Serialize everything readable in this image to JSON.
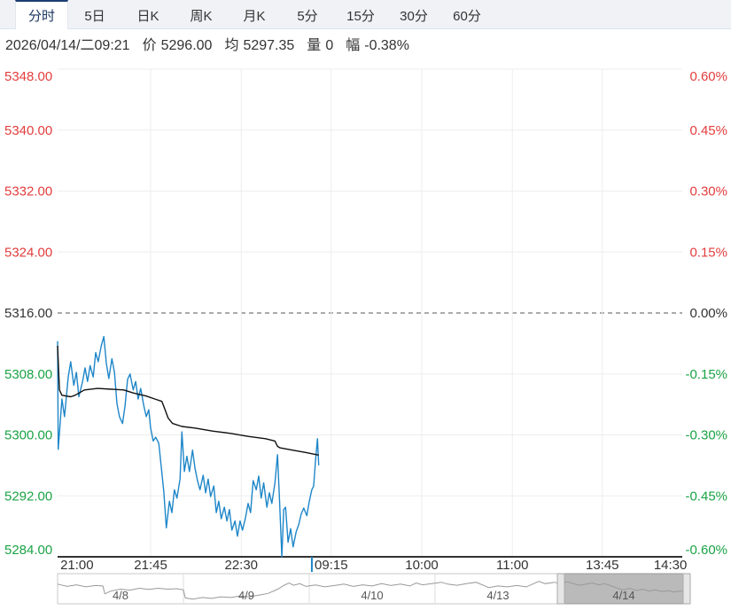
{
  "tabs": {
    "items": [
      {
        "id": "fenshi",
        "label": "分时",
        "active": true
      },
      {
        "id": "5ri",
        "label": "5日",
        "active": false
      },
      {
        "id": "rik",
        "label": "日K",
        "active": false
      },
      {
        "id": "zhouk",
        "label": "周K",
        "active": false
      },
      {
        "id": "yuek",
        "label": "月K",
        "active": false
      },
      {
        "id": "5fen",
        "label": "5分",
        "active": false
      },
      {
        "id": "15fen",
        "label": "15分",
        "active": false
      },
      {
        "id": "30fen",
        "label": "30分",
        "active": false
      },
      {
        "id": "60fen",
        "label": "60分",
        "active": false
      }
    ]
  },
  "info": {
    "datetime": "2026/04/14/二09:21",
    "fields": [
      {
        "id": "price",
        "label": "价",
        "value": "5296.00"
      },
      {
        "id": "average",
        "label": "均",
        "value": "5297.35"
      },
      {
        "id": "volume",
        "label": "量",
        "value": "0"
      },
      {
        "id": "change",
        "label": "幅",
        "value": "-0.38%"
      }
    ]
  },
  "colors": {
    "up_red": "#e23d3d",
    "down_green": "#1ba345",
    "price_blue": "#1e86c8",
    "avg_black": "#111111",
    "grid": "#ededed",
    "zero_dash": "#555555",
    "axis_line": "#333333",
    "text_dark": "#333333",
    "nav_line": "#999999",
    "nav_border": "#c8c8c8",
    "nav_divider": "#dddddd",
    "nav_window": "#a9a9a9",
    "nav_handle": "#e6e6e6"
  },
  "chart_data": {
    "type": "line",
    "title": "",
    "ylim": [
      5284,
      5348
    ],
    "baseline_price": 5316,
    "grid": true,
    "y_axis_left": {
      "ticks": [
        "5348.00",
        "5340.00",
        "5332.00",
        "5324.00",
        "5316.00",
        "5308.00",
        "5300.00",
        "5292.00",
        "5284.00"
      ],
      "colors": [
        "red",
        "red",
        "red",
        "red",
        "black",
        "green",
        "green",
        "green",
        "green"
      ]
    },
    "y_axis_right": {
      "ticks": [
        "0.60%",
        "0.45%",
        "0.30%",
        "0.15%",
        "0.00%",
        "-0.15%",
        "-0.30%",
        "-0.45%",
        "-0.60%"
      ],
      "colors": [
        "red",
        "red",
        "red",
        "red",
        "black",
        "green",
        "green",
        "green",
        "green"
      ]
    },
    "x_ticks": [
      {
        "label": "21:00",
        "t": 0.031,
        "grid": false
      },
      {
        "label": "21:45",
        "t": 0.149,
        "grid": true
      },
      {
        "label": "22:30",
        "t": 0.294,
        "grid": true
      },
      {
        "label": "09:15",
        "t": 0.438,
        "grid": true
      },
      {
        "label": "10:00",
        "t": 0.583,
        "grid": true
      },
      {
        "label": "11:00",
        "t": 0.728,
        "grid": true
      },
      {
        "label": "13:45",
        "t": 0.872,
        "grid": true
      },
      {
        "label": "14:30",
        "t": 0.981,
        "grid": false
      }
    ],
    "current_time_t": 0.407,
    "series": [
      {
        "name": "price",
        "color": "price_blue",
        "points": [
          [
            0.0,
            5312.3
          ],
          [
            0.001,
            5298.1
          ],
          [
            0.007,
            5304.7
          ],
          [
            0.011,
            5302.4
          ],
          [
            0.017,
            5307.6
          ],
          [
            0.021,
            5309.6
          ],
          [
            0.026,
            5306.5
          ],
          [
            0.03,
            5308.2
          ],
          [
            0.034,
            5305.0
          ],
          [
            0.04,
            5307.0
          ],
          [
            0.044,
            5308.8
          ],
          [
            0.048,
            5307.0
          ],
          [
            0.052,
            5309.1
          ],
          [
            0.057,
            5307.6
          ],
          [
            0.061,
            5310.8
          ],
          [
            0.065,
            5309.6
          ],
          [
            0.07,
            5311.7
          ],
          [
            0.074,
            5312.9
          ],
          [
            0.078,
            5309.4
          ],
          [
            0.082,
            5307.4
          ],
          [
            0.087,
            5310.0
          ],
          [
            0.091,
            5308.2
          ],
          [
            0.095,
            5304.1
          ],
          [
            0.099,
            5302.4
          ],
          [
            0.104,
            5301.5
          ],
          [
            0.108,
            5303.8
          ],
          [
            0.112,
            5307.3
          ],
          [
            0.116,
            5308.0
          ],
          [
            0.121,
            5305.9
          ],
          [
            0.125,
            5307.0
          ],
          [
            0.129,
            5304.7
          ],
          [
            0.133,
            5306.1
          ],
          [
            0.138,
            5303.8
          ],
          [
            0.142,
            5302.4
          ],
          [
            0.146,
            5303.3
          ],
          [
            0.149,
            5300.9
          ],
          [
            0.153,
            5299.2
          ],
          [
            0.157,
            5299.7
          ],
          [
            0.162,
            5298.9
          ],
          [
            0.166,
            5295.8
          ],
          [
            0.17,
            5292.5
          ],
          [
            0.174,
            5287.8
          ],
          [
            0.179,
            5291.3
          ],
          [
            0.183,
            5289.8
          ],
          [
            0.187,
            5292.8
          ],
          [
            0.191,
            5291.7
          ],
          [
            0.196,
            5294.2
          ],
          [
            0.199,
            5300.4
          ],
          [
            0.203,
            5295.2
          ],
          [
            0.207,
            5297.2
          ],
          [
            0.211,
            5295.2
          ],
          [
            0.216,
            5298.0
          ],
          [
            0.22,
            5295.6
          ],
          [
            0.224,
            5294.0
          ],
          [
            0.228,
            5292.8
          ],
          [
            0.233,
            5294.7
          ],
          [
            0.237,
            5292.4
          ],
          [
            0.241,
            5294.2
          ],
          [
            0.245,
            5291.9
          ],
          [
            0.25,
            5293.3
          ],
          [
            0.254,
            5289.8
          ],
          [
            0.258,
            5291.3
          ],
          [
            0.262,
            5289.0
          ],
          [
            0.267,
            5290.5
          ],
          [
            0.271,
            5288.7
          ],
          [
            0.275,
            5290.2
          ],
          [
            0.279,
            5287.5
          ],
          [
            0.284,
            5288.7
          ],
          [
            0.288,
            5286.7
          ],
          [
            0.292,
            5288.7
          ],
          [
            0.296,
            5287.5
          ],
          [
            0.301,
            5289.2
          ],
          [
            0.305,
            5291.0
          ],
          [
            0.309,
            5289.8
          ],
          [
            0.313,
            5294.0
          ],
          [
            0.318,
            5292.8
          ],
          [
            0.322,
            5294.6
          ],
          [
            0.326,
            5291.7
          ],
          [
            0.33,
            5293.7
          ],
          [
            0.335,
            5290.5
          ],
          [
            0.339,
            5292.4
          ],
          [
            0.343,
            5291.0
          ],
          [
            0.348,
            5293.7
          ],
          [
            0.352,
            5297.4
          ],
          [
            0.355,
            5291.9
          ],
          [
            0.359,
            5284.0
          ],
          [
            0.362,
            5290.2
          ],
          [
            0.365,
            5290.5
          ],
          [
            0.369,
            5285.9
          ],
          [
            0.373,
            5287.7
          ],
          [
            0.377,
            5285.3
          ],
          [
            0.382,
            5287.3
          ],
          [
            0.386,
            5288.2
          ],
          [
            0.39,
            5289.6
          ],
          [
            0.394,
            5290.4
          ],
          [
            0.399,
            5289.4
          ],
          [
            0.403,
            5291.3
          ],
          [
            0.407,
            5292.8
          ],
          [
            0.41,
            5293.3
          ],
          [
            0.413,
            5296.8
          ],
          [
            0.416,
            5299.5
          ],
          [
            0.418,
            5296.0
          ]
        ]
      },
      {
        "name": "average",
        "color": "avg_black",
        "points": [
          [
            0.0,
            5311.7
          ],
          [
            0.003,
            5305.9
          ],
          [
            0.007,
            5305.2
          ],
          [
            0.021,
            5305.0
          ],
          [
            0.028,
            5305.2
          ],
          [
            0.043,
            5305.9
          ],
          [
            0.064,
            5306.1
          ],
          [
            0.106,
            5305.9
          ],
          [
            0.121,
            5305.5
          ],
          [
            0.142,
            5305.1
          ],
          [
            0.156,
            5304.7
          ],
          [
            0.167,
            5304.4
          ],
          [
            0.172,
            5303.3
          ],
          [
            0.177,
            5302.2
          ],
          [
            0.184,
            5301.5
          ],
          [
            0.199,
            5301.1
          ],
          [
            0.22,
            5300.9
          ],
          [
            0.248,
            5300.5
          ],
          [
            0.277,
            5300.2
          ],
          [
            0.305,
            5299.8
          ],
          [
            0.333,
            5299.5
          ],
          [
            0.348,
            5299.2
          ],
          [
            0.352,
            5298.5
          ],
          [
            0.356,
            5298.3
          ],
          [
            0.376,
            5298.0
          ],
          [
            0.397,
            5297.7
          ],
          [
            0.418,
            5297.35
          ]
        ]
      }
    ],
    "navigator": {
      "dates": [
        "4/8",
        "4/9",
        "4/10",
        "4/13",
        "4/14"
      ],
      "selected_index": 4,
      "points": [
        [
          0.0,
          0.3
        ],
        [
          0.015,
          0.4
        ],
        [
          0.03,
          0.33
        ],
        [
          0.045,
          0.42
        ],
        [
          0.06,
          0.36
        ],
        [
          0.072,
          0.38
        ],
        [
          0.075,
          0.72
        ],
        [
          0.085,
          0.6
        ],
        [
          0.1,
          0.52
        ],
        [
          0.115,
          0.56
        ],
        [
          0.13,
          0.48
        ],
        [
          0.145,
          0.53
        ],
        [
          0.16,
          0.48
        ],
        [
          0.175,
          0.52
        ],
        [
          0.19,
          0.5
        ],
        [
          0.2,
          0.55
        ],
        [
          0.203,
          0.9
        ],
        [
          0.215,
          0.95
        ],
        [
          0.23,
          0.88
        ],
        [
          0.245,
          0.92
        ],
        [
          0.26,
          0.85
        ],
        [
          0.275,
          0.88
        ],
        [
          0.29,
          0.82
        ],
        [
          0.305,
          0.85
        ],
        [
          0.32,
          0.78
        ],
        [
          0.335,
          0.7
        ],
        [
          0.35,
          0.52
        ],
        [
          0.36,
          0.35
        ],
        [
          0.368,
          0.25
        ],
        [
          0.375,
          0.35
        ],
        [
          0.385,
          0.28
        ],
        [
          0.395,
          0.4
        ],
        [
          0.41,
          0.34
        ],
        [
          0.425,
          0.42
        ],
        [
          0.44,
          0.36
        ],
        [
          0.455,
          0.3
        ],
        [
          0.47,
          0.4
        ],
        [
          0.485,
          0.33
        ],
        [
          0.5,
          0.38
        ],
        [
          0.515,
          0.28
        ],
        [
          0.53,
          0.36
        ],
        [
          0.545,
          0.3
        ],
        [
          0.56,
          0.38
        ],
        [
          0.57,
          0.25
        ],
        [
          0.58,
          0.33
        ],
        [
          0.595,
          0.28
        ],
        [
          0.61,
          0.22
        ],
        [
          0.62,
          0.3
        ],
        [
          0.635,
          0.35
        ],
        [
          0.65,
          0.28
        ],
        [
          0.665,
          0.22
        ],
        [
          0.675,
          0.33
        ],
        [
          0.685,
          0.45
        ],
        [
          0.7,
          0.38
        ],
        [
          0.715,
          0.42
        ],
        [
          0.73,
          0.36
        ],
        [
          0.745,
          0.42
        ],
        [
          0.755,
          0.3
        ],
        [
          0.765,
          0.18
        ],
        [
          0.775,
          0.28
        ],
        [
          0.79,
          0.22
        ],
        [
          0.8,
          0.3
        ],
        [
          0.81,
          0.2
        ],
        [
          0.82,
          0.28
        ],
        [
          0.83,
          0.35
        ],
        [
          0.84,
          0.3
        ],
        [
          0.85,
          0.25
        ],
        [
          0.86,
          0.33
        ],
        [
          0.87,
          0.28
        ],
        [
          0.88,
          0.38
        ],
        [
          0.89,
          0.48
        ],
        [
          0.9,
          0.55
        ],
        [
          0.91,
          0.48
        ],
        [
          0.92,
          0.58
        ],
        [
          0.93,
          0.52
        ],
        [
          0.94,
          0.6
        ],
        [
          0.95,
          0.55
        ],
        [
          0.96,
          0.62
        ],
        [
          0.97,
          0.58
        ],
        [
          0.98,
          0.64
        ],
        [
          0.99,
          0.6
        ],
        [
          1.0,
          0.62
        ]
      ]
    }
  }
}
